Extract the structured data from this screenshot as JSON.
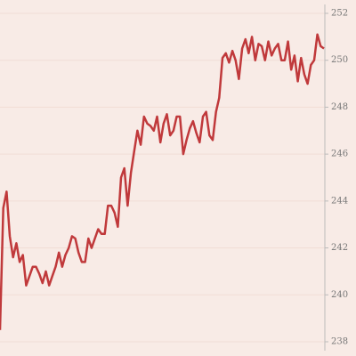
{
  "chart_data": {
    "type": "line",
    "color": "#c0393b",
    "grid": true,
    "ylim": [
      238,
      252
    ],
    "yticks": [
      238,
      240,
      242,
      244,
      246,
      248,
      250,
      252
    ],
    "values": [
      238.5,
      243.7,
      244.4,
      242.5,
      241.6,
      242.2,
      241.4,
      241.7,
      240.4,
      240.8,
      241.2,
      241.2,
      240.9,
      240.5,
      241.0,
      240.4,
      240.8,
      241.2,
      241.8,
      241.2,
      241.7,
      242.0,
      242.5,
      242.4,
      241.8,
      241.4,
      241.4,
      242.4,
      242.0,
      242.4,
      242.8,
      242.6,
      242.6,
      243.8,
      243.8,
      243.5,
      242.9,
      245.0,
      245.4,
      243.8,
      245.2,
      246.1,
      247.0,
      246.4,
      247.6,
      247.3,
      247.2,
      247.0,
      247.6,
      246.5,
      247.3,
      247.7,
      246.8,
      247.0,
      247.6,
      247.6,
      246.0,
      246.6,
      247.1,
      247.4,
      246.9,
      246.5,
      247.6,
      247.8,
      246.8,
      246.6,
      247.8,
      248.4,
      250.1,
      250.3,
      249.9,
      250.4,
      250.0,
      249.2,
      250.5,
      250.9,
      250.3,
      251.0,
      250.0,
      250.7,
      250.6,
      250.0,
      250.8,
      250.2,
      250.5,
      250.7,
      250.0,
      250.0,
      250.8,
      249.6,
      250.2,
      249.1,
      250.1,
      249.4,
      249.0,
      249.8,
      250.0,
      251.1,
      250.6,
      250.5
    ]
  }
}
